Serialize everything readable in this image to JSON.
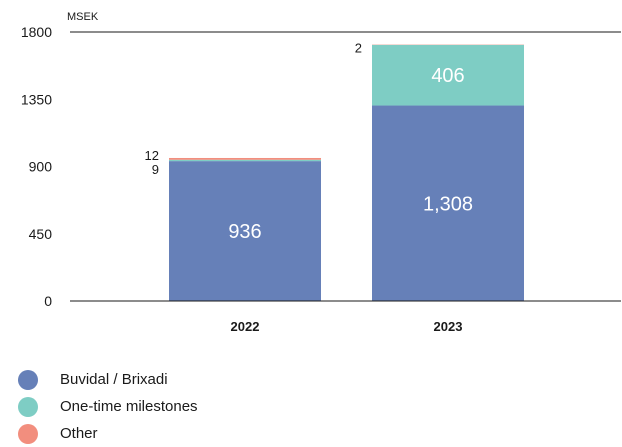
{
  "chart_data": {
    "type": "bar",
    "stacked": true,
    "unit_label": "MSEK",
    "categories": [
      "2022",
      "2023"
    ],
    "series": [
      {
        "name": "Buvidal / Brixadi",
        "values": [
          936,
          1308
        ],
        "color": "#6680b8",
        "label_color": "#ffffff"
      },
      {
        "name": "One-time milestones",
        "values": [
          9,
          406
        ],
        "color": "#7ecdc4",
        "label_color": "#ffffff"
      },
      {
        "name": "Other",
        "values": [
          12,
          2
        ],
        "color": "#f28e7e",
        "label_color": "#1a1a1a"
      }
    ],
    "data_labels": [
      {
        "category": "2022",
        "series": "Buvidal / Brixadi",
        "text": "936",
        "placement": "inside"
      },
      {
        "category": "2022",
        "series": "One-time milestones",
        "text": "9",
        "placement": "left"
      },
      {
        "category": "2022",
        "series": "Other",
        "text": "12",
        "placement": "left"
      },
      {
        "category": "2023",
        "series": "Buvidal / Brixadi",
        "text": "1,308",
        "placement": "inside"
      },
      {
        "category": "2023",
        "series": "One-time milestones",
        "text": "406",
        "placement": "inside"
      },
      {
        "category": "2023",
        "series": "Other",
        "text": "2",
        "placement": "left"
      }
    ],
    "yticks": [
      "0",
      "450",
      "900",
      "1350",
      "1800"
    ],
    "ytick_values": [
      0,
      450,
      900,
      1350,
      1800
    ],
    "ylim": [
      0,
      1800
    ],
    "grid": false,
    "legend_position": "bottom-left"
  },
  "legend": [
    {
      "label": "Buvidal / Brixadi",
      "color": "#6680b8"
    },
    {
      "label": "One-time milestones",
      "color": "#7ecdc4"
    },
    {
      "label": "Other",
      "color": "#f28e7e"
    }
  ]
}
